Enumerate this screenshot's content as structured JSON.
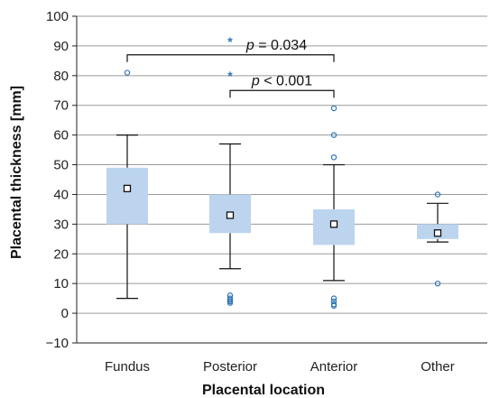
{
  "chart_data": {
    "type": "box",
    "xlabel": "Placental location",
    "ylabel": "Placental thickness [mm]",
    "ylim": [
      -10,
      100
    ],
    "yticks": [
      -10,
      0,
      10,
      20,
      30,
      40,
      50,
      60,
      70,
      80,
      90,
      100
    ],
    "y_tick_labels": [
      "−10",
      "0",
      "10",
      "20",
      "30",
      "40",
      "50",
      "60",
      "70",
      "80",
      "90",
      "100"
    ],
    "grid": true,
    "categories": [
      "Fundus",
      "Posterior",
      "Anterior",
      "Other"
    ],
    "box_color": "#bcd4ee",
    "outlier_color": "#2e74b5",
    "boxes": [
      {
        "category": "Fundus",
        "whisker_low": 5,
        "q1": 30,
        "q3": 49,
        "whisker_high": 60,
        "mean": 42,
        "outliers": [
          81
        ],
        "extremes": []
      },
      {
        "category": "Posterior",
        "whisker_low": 15,
        "q1": 27,
        "q3": 40,
        "whisker_high": 57,
        "mean": 33,
        "outliers": [
          6,
          5,
          4.5,
          4,
          3.5
        ],
        "extremes": [
          80,
          91.5
        ]
      },
      {
        "category": "Anterior",
        "whisker_low": 11,
        "q1": 23,
        "q3": 35,
        "whisker_high": 50,
        "mean": 30,
        "outliers": [
          5,
          4,
          3,
          2.5,
          52.5,
          60,
          69
        ],
        "extremes": []
      },
      {
        "category": "Other",
        "whisker_low": 24,
        "q1": 25,
        "q3": 30,
        "whisker_high": 37,
        "mean": 27,
        "outliers": [
          10,
          40
        ],
        "extremes": []
      }
    ],
    "annotations": [
      {
        "text": "p = 0.034",
        "from": "Fundus",
        "to": "Anterior",
        "y": 87
      },
      {
        "text": "p < 0.001",
        "from": "Posterior",
        "to": "Anterior",
        "y": 75
      }
    ]
  }
}
